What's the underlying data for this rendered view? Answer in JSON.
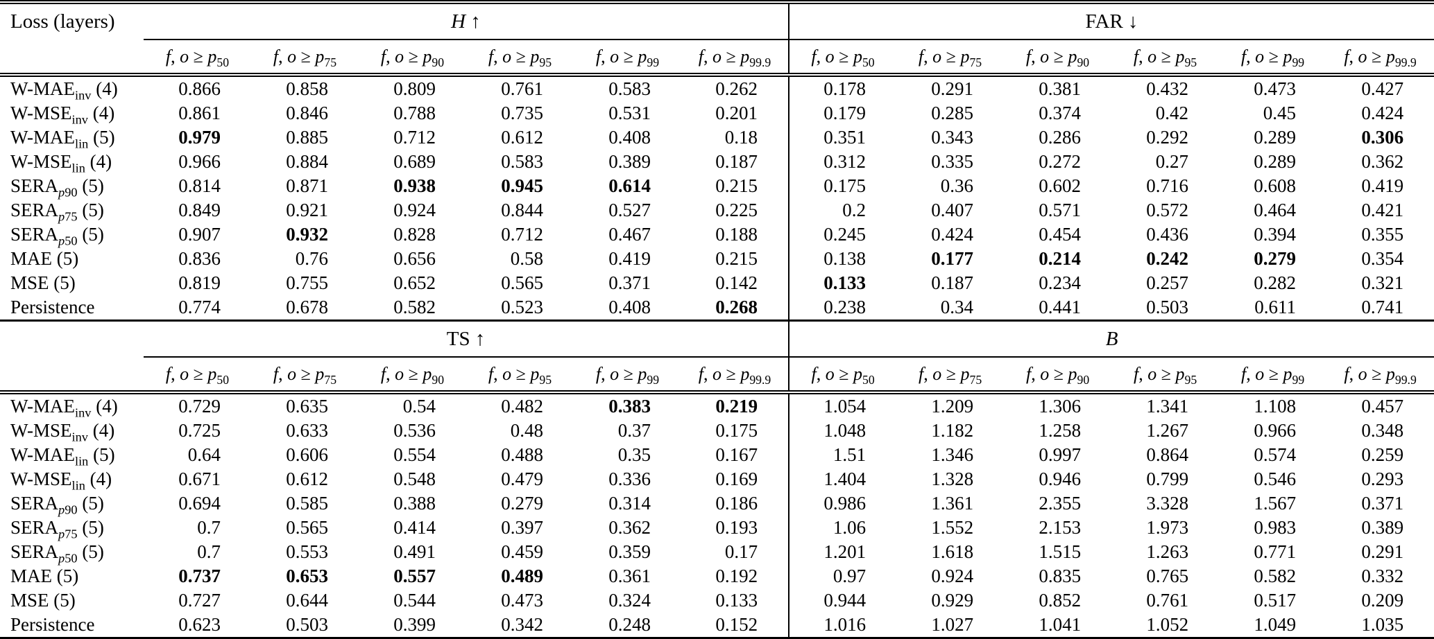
{
  "table": {
    "corner_label": "Loss (layers)",
    "col_header": {
      "var1": "f",
      "var2": "o",
      "relation": "≥",
      "base": "p"
    },
    "percentiles": [
      "50",
      "75",
      "90",
      "95",
      "99",
      "99.9"
    ],
    "rows": [
      {
        "name": "W-MAE",
        "sub": "inv",
        "layers": "4"
      },
      {
        "name": "W-MSE",
        "sub": "inv",
        "layers": "4"
      },
      {
        "name": "W-MAE",
        "sub": "lin",
        "layers": "5"
      },
      {
        "name": "W-MSE",
        "sub": "lin",
        "layers": "4"
      },
      {
        "name": "SERA",
        "sub": "p90",
        "layers": "5"
      },
      {
        "name": "SERA",
        "sub": "p75",
        "layers": "5"
      },
      {
        "name": "SERA",
        "sub": "p50",
        "layers": "5"
      },
      {
        "name": "MAE",
        "sub": "",
        "layers": "5"
      },
      {
        "name": "MSE",
        "sub": "",
        "layers": "5"
      },
      {
        "name": "Persistence",
        "sub": "",
        "layers": ""
      }
    ],
    "panels": [
      {
        "corner": "Loss (layers)",
        "groups": [
          {
            "title": "H",
            "italic": true,
            "arrow": "↑",
            "values": [
              [
                "0.866",
                "0.858",
                "0.809",
                "0.761",
                "0.583",
                "0.262"
              ],
              [
                "0.861",
                "0.846",
                "0.788",
                "0.735",
                "0.531",
                "0.201"
              ],
              [
                "0.979",
                "0.885",
                "0.712",
                "0.612",
                "0.408",
                "0.18"
              ],
              [
                "0.966",
                "0.884",
                "0.689",
                "0.583",
                "0.389",
                "0.187"
              ],
              [
                "0.814",
                "0.871",
                "0.938",
                "0.945",
                "0.614",
                "0.215"
              ],
              [
                "0.849",
                "0.921",
                "0.924",
                "0.844",
                "0.527",
                "0.225"
              ],
              [
                "0.907",
                "0.932",
                "0.828",
                "0.712",
                "0.467",
                "0.188"
              ],
              [
                "0.836",
                "0.76",
                "0.656",
                "0.58",
                "0.419",
                "0.215"
              ],
              [
                "0.819",
                "0.755",
                "0.652",
                "0.565",
                "0.371",
                "0.142"
              ],
              [
                "0.774",
                "0.678",
                "0.582",
                "0.523",
                "0.408",
                "0.268"
              ]
            ],
            "bold": [
              [
                2,
                0
              ],
              [
                6,
                1
              ],
              [
                4,
                2
              ],
              [
                4,
                3
              ],
              [
                4,
                4
              ],
              [
                9,
                5
              ]
            ]
          },
          {
            "title": "FAR",
            "italic": false,
            "arrow": "↓",
            "values": [
              [
                "0.178",
                "0.291",
                "0.381",
                "0.432",
                "0.473",
                "0.427"
              ],
              [
                "0.179",
                "0.285",
                "0.374",
                "0.42",
                "0.45",
                "0.424"
              ],
              [
                "0.351",
                "0.343",
                "0.286",
                "0.292",
                "0.289",
                "0.306"
              ],
              [
                "0.312",
                "0.335",
                "0.272",
                "0.27",
                "0.289",
                "0.362"
              ],
              [
                "0.175",
                "0.36",
                "0.602",
                "0.716",
                "0.608",
                "0.419"
              ],
              [
                "0.2",
                "0.407",
                "0.571",
                "0.572",
                "0.464",
                "0.421"
              ],
              [
                "0.245",
                "0.424",
                "0.454",
                "0.436",
                "0.394",
                "0.355"
              ],
              [
                "0.138",
                "0.177",
                "0.214",
                "0.242",
                "0.279",
                "0.354"
              ],
              [
                "0.133",
                "0.187",
                "0.234",
                "0.257",
                "0.282",
                "0.321"
              ],
              [
                "0.238",
                "0.34",
                "0.441",
                "0.503",
                "0.611",
                "0.741"
              ]
            ],
            "bold": [
              [
                8,
                0
              ],
              [
                7,
                1
              ],
              [
                7,
                2
              ],
              [
                7,
                3
              ],
              [
                7,
                4
              ],
              [
                2,
                5
              ]
            ]
          }
        ]
      },
      {
        "corner": "",
        "groups": [
          {
            "title": "TS",
            "italic": false,
            "arrow": "↑",
            "values": [
              [
                "0.729",
                "0.635",
                "0.54",
                "0.482",
                "0.383",
                "0.219"
              ],
              [
                "0.725",
                "0.633",
                "0.536",
                "0.48",
                "0.37",
                "0.175"
              ],
              [
                "0.64",
                "0.606",
                "0.554",
                "0.488",
                "0.35",
                "0.167"
              ],
              [
                "0.671",
                "0.612",
                "0.548",
                "0.479",
                "0.336",
                "0.169"
              ],
              [
                "0.694",
                "0.585",
                "0.388",
                "0.279",
                "0.314",
                "0.186"
              ],
              [
                "0.7",
                "0.565",
                "0.414",
                "0.397",
                "0.362",
                "0.193"
              ],
              [
                "0.7",
                "0.553",
                "0.491",
                "0.459",
                "0.359",
                "0.17"
              ],
              [
                "0.737",
                "0.653",
                "0.557",
                "0.489",
                "0.361",
                "0.192"
              ],
              [
                "0.727",
                "0.644",
                "0.544",
                "0.473",
                "0.324",
                "0.133"
              ],
              [
                "0.623",
                "0.503",
                "0.399",
                "0.342",
                "0.248",
                "0.152"
              ]
            ],
            "bold": [
              [
                7,
                0
              ],
              [
                7,
                1
              ],
              [
                7,
                2
              ],
              [
                7,
                3
              ],
              [
                0,
                4
              ],
              [
                0,
                5
              ]
            ]
          },
          {
            "title": "B",
            "italic": true,
            "arrow": "",
            "values": [
              [
                "1.054",
                "1.209",
                "1.306",
                "1.341",
                "1.108",
                "0.457"
              ],
              [
                "1.048",
                "1.182",
                "1.258",
                "1.267",
                "0.966",
                "0.348"
              ],
              [
                "1.51",
                "1.346",
                "0.997",
                "0.864",
                "0.574",
                "0.259"
              ],
              [
                "1.404",
                "1.328",
                "0.946",
                "0.799",
                "0.546",
                "0.293"
              ],
              [
                "0.986",
                "1.361",
                "2.355",
                "3.328",
                "1.567",
                "0.371"
              ],
              [
                "1.06",
                "1.552",
                "2.153",
                "1.973",
                "0.983",
                "0.389"
              ],
              [
                "1.201",
                "1.618",
                "1.515",
                "1.263",
                "0.771",
                "0.291"
              ],
              [
                "0.97",
                "0.924",
                "0.835",
                "0.765",
                "0.582",
                "0.332"
              ],
              [
                "0.944",
                "0.929",
                "0.852",
                "0.761",
                "0.517",
                "0.209"
              ],
              [
                "1.016",
                "1.027",
                "1.041",
                "1.052",
                "1.049",
                "1.035"
              ]
            ],
            "bold": []
          }
        ]
      }
    ]
  }
}
